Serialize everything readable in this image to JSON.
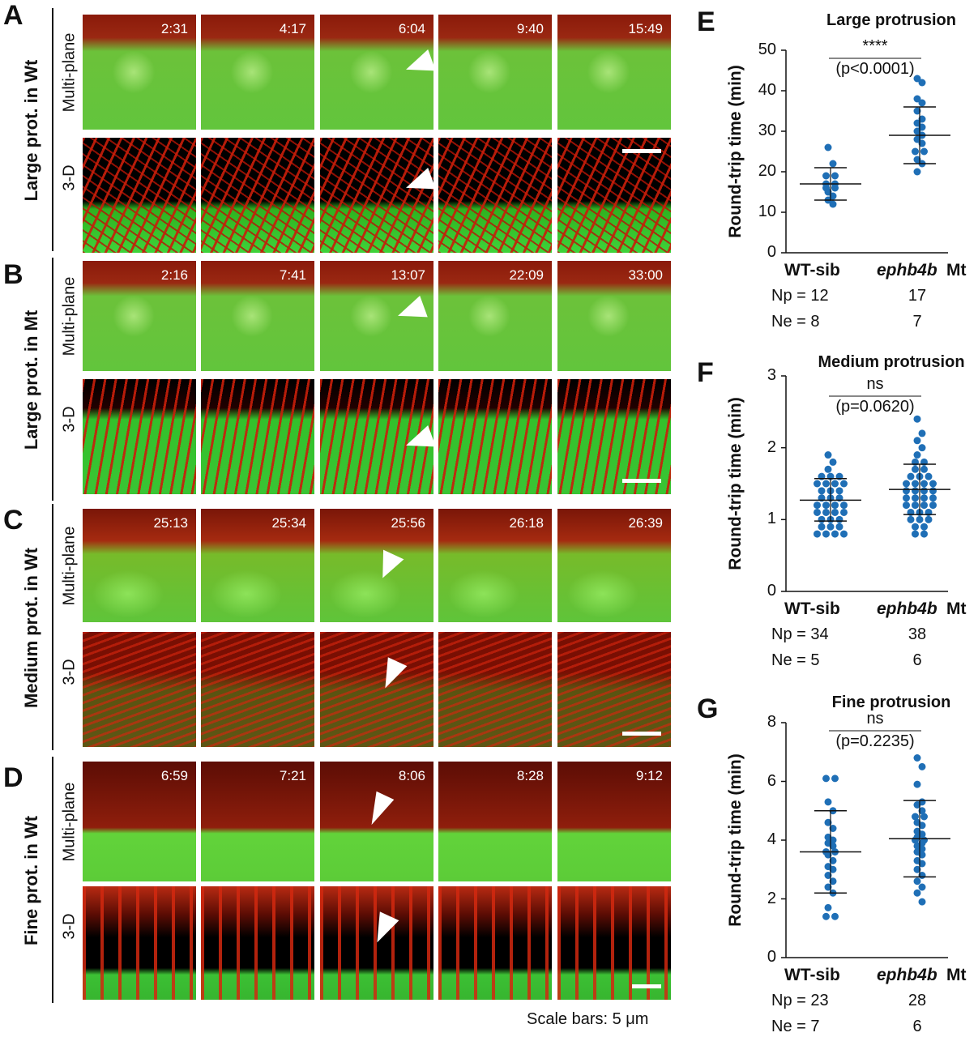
{
  "letters": {
    "A": "A",
    "B": "B",
    "C": "C",
    "D": "D",
    "E": "E",
    "F": "F",
    "G": "G"
  },
  "rows": [
    {
      "label": "Large prot. in Wt",
      "style": "large",
      "times": [
        "2:31",
        "4:17",
        "6:04",
        "9:40",
        "15:49"
      ]
    },
    {
      "label": "Large prot. in Mt",
      "style": "large",
      "times": [
        "2:16",
        "7:41",
        "13:07",
        "22:09",
        "33:00"
      ]
    },
    {
      "label": "Medium prot. in Wt",
      "style": "medium",
      "times": [
        "25:13",
        "25:34",
        "25:56",
        "26:18",
        "26:39"
      ]
    },
    {
      "label": "Fine prot. in Wt",
      "style": "fine",
      "times": [
        "6:59",
        "7:21",
        "8:06",
        "8:28",
        "9:12"
      ]
    }
  ],
  "sublabels": {
    "multiplane": "Multi-plane",
    "three_d": "3-D"
  },
  "scale_note": "Scale bars: 5 μm",
  "chart_data": [
    {
      "type": "scatter",
      "title": "Large protrusion",
      "ylabel": "Round-trip time (min)",
      "ylim": [
        0,
        50
      ],
      "yticks": [
        0,
        10,
        20,
        30,
        40,
        50
      ],
      "categories": [
        "WT-sib",
        "ephb4b"
      ],
      "category_suffix": "Mt",
      "significance": "****",
      "pvalue": "(p<0.0001)",
      "np_label": "Np = 12",
      "np_mt": "17",
      "ne_label": "Ne = 8",
      "ne_mt": "7",
      "series": [
        {
          "mean": 17,
          "sd_low": 13,
          "sd_high": 21,
          "values": [
            26,
            22,
            19,
            19,
            17,
            17,
            16,
            16,
            15,
            14,
            13,
            12
          ]
        },
        {
          "mean": 29,
          "sd_low": 22,
          "sd_high": 36,
          "values": [
            43,
            42,
            38,
            37,
            35,
            33,
            32,
            31,
            30,
            29,
            28,
            27,
            25,
            25,
            23,
            22,
            20
          ]
        }
      ]
    },
    {
      "type": "scatter",
      "title": "Medium protrusion",
      "ylabel": "Round-trip time (min)",
      "ylim": [
        0,
        3
      ],
      "yticks": [
        0,
        1,
        2,
        3
      ],
      "categories": [
        "WT-sib",
        "ephb4b"
      ],
      "category_suffix": "Mt",
      "significance": "ns",
      "pvalue": "(p=0.0620)",
      "np_label": "Np = 34",
      "np_mt": "38",
      "ne_label": "Ne = 5",
      "ne_mt": "6",
      "series": [
        {
          "mean": 1.27,
          "sd_low": 0.98,
          "sd_high": 1.57,
          "values": [
            1.9,
            1.8,
            1.7,
            1.6,
            1.6,
            1.6,
            1.5,
            1.5,
            1.5,
            1.5,
            1.4,
            1.4,
            1.4,
            1.3,
            1.3,
            1.3,
            1.2,
            1.2,
            1.2,
            1.2,
            1.1,
            1.1,
            1.1,
            1.1,
            1.0,
            1.0,
            1.0,
            0.9,
            0.9,
            0.9,
            0.8,
            0.8,
            0.8,
            0.8
          ]
        },
        {
          "mean": 1.42,
          "sd_low": 1.07,
          "sd_high": 1.77,
          "values": [
            2.4,
            2.2,
            2.1,
            2.0,
            1.9,
            1.8,
            1.8,
            1.7,
            1.7,
            1.6,
            1.6,
            1.6,
            1.5,
            1.5,
            1.5,
            1.5,
            1.4,
            1.4,
            1.4,
            1.4,
            1.3,
            1.3,
            1.3,
            1.3,
            1.2,
            1.2,
            1.2,
            1.2,
            1.1,
            1.1,
            1.1,
            1.0,
            1.0,
            1.0,
            0.9,
            0.9,
            0.8,
            0.8
          ]
        }
      ]
    },
    {
      "type": "scatter",
      "title": "Fine protrusion",
      "ylabel": "Round-trip time (min)",
      "ylim": [
        0,
        8
      ],
      "yticks": [
        0,
        2,
        4,
        6,
        8
      ],
      "categories": [
        "WT-sib",
        "ephb4b"
      ],
      "category_suffix": "Mt",
      "significance": "ns",
      "pvalue": "(p=0.2235)",
      "np_label": "Np = 23",
      "np_mt": "28",
      "ne_label": "Ne = 7",
      "ne_mt": "6",
      "series": [
        {
          "mean": 3.6,
          "sd_low": 2.2,
          "sd_high": 5.0,
          "values": [
            6.1,
            6.1,
            5.3,
            5.0,
            4.6,
            4.4,
            4.1,
            4.0,
            3.9,
            3.8,
            3.6,
            3.6,
            3.5,
            3.3,
            3.1,
            3.0,
            2.8,
            2.6,
            2.4,
            2.2,
            1.7,
            1.4,
            1.4
          ]
        },
        {
          "mean": 4.05,
          "sd_low": 2.75,
          "sd_high": 5.35,
          "values": [
            6.8,
            6.5,
            5.9,
            5.3,
            5.2,
            5.0,
            4.8,
            4.8,
            4.6,
            4.5,
            4.3,
            4.2,
            4.1,
            4.0,
            4.0,
            3.9,
            3.8,
            3.7,
            3.6,
            3.5,
            3.3,
            3.2,
            3.0,
            2.8,
            2.6,
            2.4,
            2.2,
            1.9
          ]
        }
      ]
    }
  ]
}
